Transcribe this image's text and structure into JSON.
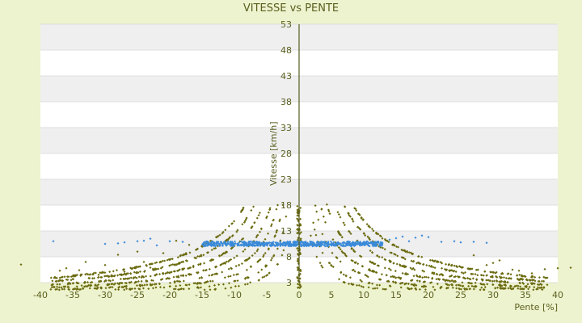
{
  "chart_data": {
    "type": "scatter",
    "title": "VITESSE vs PENTE",
    "xlabel": "Pente [%]",
    "ylabel": "Vitesse [km/h]",
    "xlim": [
      -40,
      40
    ],
    "ylim": [
      3,
      53
    ],
    "x_ticks": [
      -40,
      -35,
      -30,
      -25,
      -20,
      -15,
      -10,
      -5,
      0,
      5,
      10,
      15,
      20,
      25,
      30,
      35,
      40
    ],
    "y_ticks": [
      3,
      8,
      13,
      18,
      23,
      28,
      33,
      38,
      43,
      48,
      53
    ],
    "grid": "horizontal alternating bands",
    "legend": "none",
    "series": [
      {
        "color": "#6b6b10",
        "marker": "small diamond",
        "pattern": "curved bands approximately y = k / |x| (1.6 < y < 18)",
        "bands_k": [
          22,
          32,
          45,
          60,
          78,
          100,
          125,
          150
        ],
        "scatter": [
          [
            -43,
            6.5
          ],
          [
            -37,
            5.3
          ],
          [
            -36,
            5.8
          ],
          [
            -34,
            5.4
          ],
          [
            -33,
            7
          ],
          [
            -31,
            4.5
          ],
          [
            -30,
            6.4
          ],
          [
            -28,
            8.4
          ],
          [
            -27,
            5.1
          ],
          [
            -25,
            9
          ],
          [
            -24,
            7
          ],
          [
            -23,
            5.9
          ],
          [
            -22,
            4.6
          ],
          [
            -21,
            8.7
          ],
          [
            -19,
            11.1
          ],
          [
            -18,
            8.3
          ],
          [
            -17,
            10.3
          ],
          [
            27,
            8.3
          ],
          [
            29,
            6.4
          ],
          [
            30,
            6.8
          ],
          [
            31,
            7.3
          ],
          [
            33,
            5.5
          ],
          [
            34,
            5.3
          ],
          [
            36,
            4.8
          ],
          [
            38,
            5.6
          ],
          [
            40,
            5.8
          ],
          [
            42,
            5.9
          ]
        ]
      },
      {
        "color": "#3a8ad8",
        "marker": "small diamond",
        "pattern": "dense horizontal band at y ≈ 10.5 for -15 < x < 13",
        "band_y": 10.5,
        "band_x_range": [
          -15,
          13
        ],
        "scatter": [
          [
            -38,
            11
          ],
          [
            -30,
            10.5
          ],
          [
            -28,
            10.6
          ],
          [
            -27,
            10.8
          ],
          [
            -25,
            11
          ],
          [
            -24,
            11.1
          ],
          [
            -23,
            11.5
          ],
          [
            -22,
            10.2
          ],
          [
            -20,
            11
          ],
          [
            -18,
            10.9
          ],
          [
            14,
            11.3
          ],
          [
            15,
            11.6
          ],
          [
            16,
            11.9
          ],
          [
            17,
            11
          ],
          [
            18,
            11.7
          ],
          [
            19,
            12.1
          ],
          [
            20,
            11.8
          ],
          [
            22,
            10.9
          ],
          [
            24,
            11
          ],
          [
            25,
            10.8
          ],
          [
            27,
            10.9
          ],
          [
            29,
            10.7
          ]
        ]
      }
    ]
  }
}
